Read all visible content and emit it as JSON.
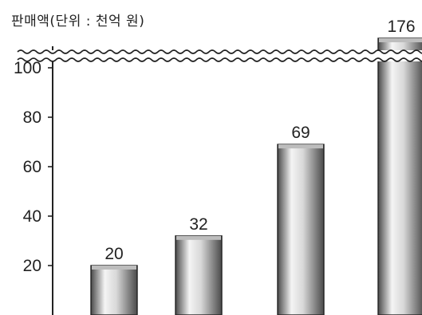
{
  "chart_data": {
    "type": "bar",
    "title": "",
    "xlabel": "",
    "ylabel": "판매액(단위 : 천억 원)",
    "categories": [
      "",
      "",
      "",
      ""
    ],
    "values": [
      20,
      32,
      69,
      176
    ],
    "value_labels": [
      "20",
      "32",
      "69",
      "176"
    ],
    "yticks": [
      "20",
      "40",
      "60",
      "80",
      "100"
    ],
    "ylim": [
      0,
      110
    ],
    "axis_break": true,
    "grid": false,
    "legend": "none",
    "colors": {
      "bar_dark": "#4a4a4a",
      "bar_light": "#f4f4f4",
      "axis": "#222222",
      "text": "#222222"
    }
  }
}
